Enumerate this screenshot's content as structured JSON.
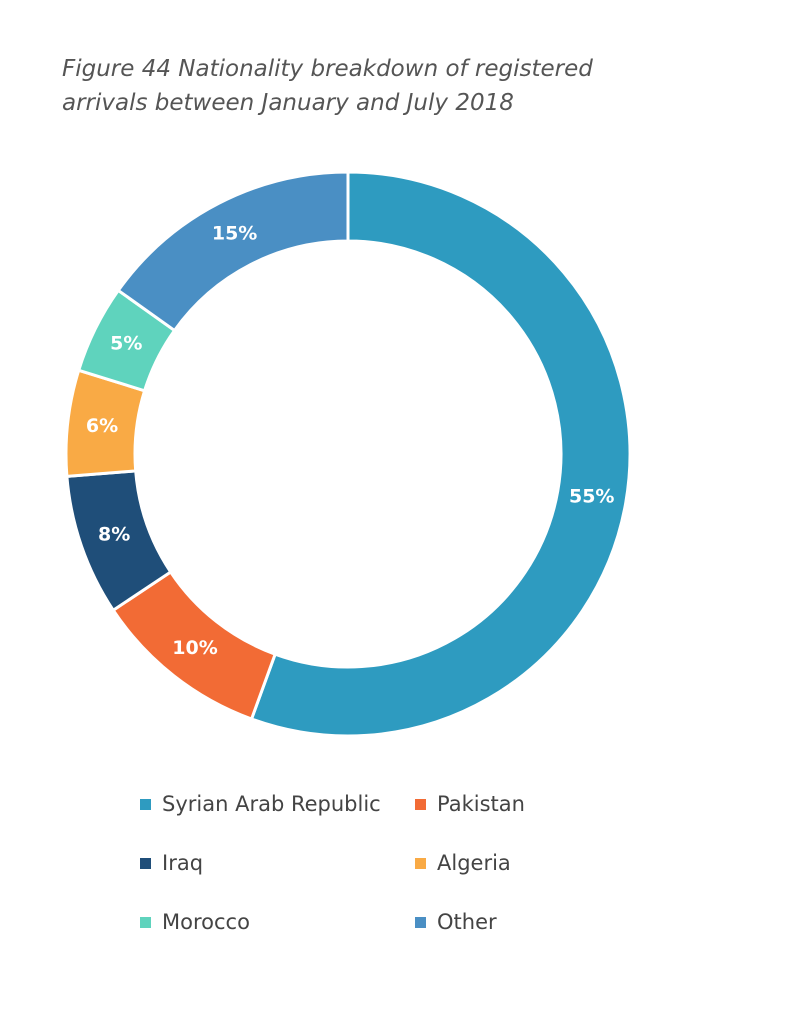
{
  "chart_data": {
    "type": "donut",
    "title": "Figure 44 Nationality breakdown of registered arrivals between January and July 2018",
    "categories": [
      "Syrian Arab Republic",
      "Pakistan",
      "Iraq",
      "Algeria",
      "Morocco",
      "Other"
    ],
    "values": [
      55,
      10,
      8,
      6,
      5,
      15
    ],
    "value_labels": [
      "55%",
      "10%",
      "8%",
      "6%",
      "5%",
      "15%"
    ],
    "colors": [
      "#2e9bc0",
      "#f26b35",
      "#1f4e79",
      "#f9aa45",
      "#5fd3bd",
      "#4a8fc4"
    ]
  }
}
